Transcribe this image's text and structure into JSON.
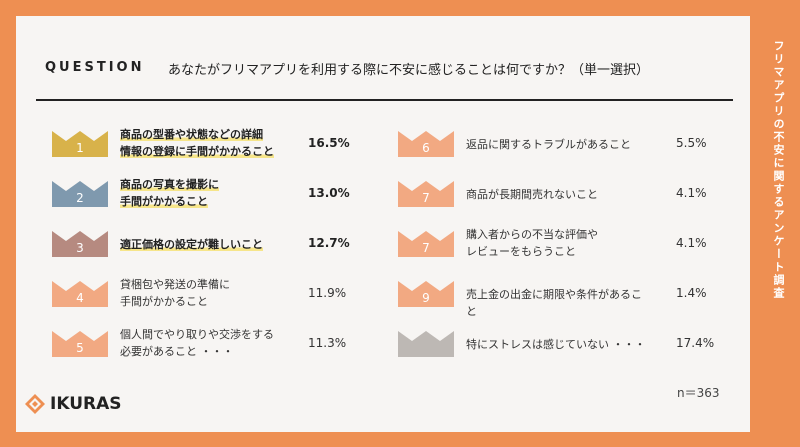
{
  "side_title": "フリマアプリの不安に関するアンケート調査",
  "question": {
    "label": "QUESTION",
    "text": "あなたがフリマアプリを利用する際に不安に感じることは何ですか？（単一選択）"
  },
  "sample_size": "n＝363",
  "logo": {
    "text": "IKURAS",
    "icon": "ikuras-diamond-icon"
  },
  "colors": {
    "rank1": "#D8B24A",
    "rank2": "#7F99AE",
    "rank3": "#B68A80",
    "rank_other": "#F2A982",
    "rank_none": "#BDB8B4",
    "highlight": "#F6E58A"
  },
  "chart_data": {
    "type": "table",
    "unit": "%",
    "items": [
      {
        "rank": "1",
        "label_lines": [
          "商品の型番や状態などの詳細",
          "情報の登録に手間がかかること"
        ],
        "value": 16.5,
        "value_label": "16.5%"
      },
      {
        "rank": "2",
        "label_lines": [
          "商品の写真を撮影に",
          "手間がかかること"
        ],
        "value": 13.0,
        "value_label": "13.0%"
      },
      {
        "rank": "3",
        "label_lines": [
          "適正価格の設定が難しいこと"
        ],
        "value": 12.7,
        "value_label": "12.7%"
      },
      {
        "rank": "4",
        "label_lines": [
          "貸梱包や発送の準備に",
          "手間がかかること"
        ],
        "value": 11.9,
        "value_label": "11.9%"
      },
      {
        "rank": "5",
        "label_lines": [
          "個人間でやり取りや交渉をする",
          "必要があること ・・・"
        ],
        "value": 11.3,
        "value_label": "11.3%"
      },
      {
        "rank": "6",
        "label_lines": [
          "返品に関するトラブルがあること"
        ],
        "value": 5.5,
        "value_label": "5.5%"
      },
      {
        "rank": "7",
        "label_lines": [
          "商品が長期間売れないこと"
        ],
        "value": 4.1,
        "value_label": "4.1%"
      },
      {
        "rank": "7",
        "label_lines": [
          "購入者からの不当な評価や",
          "レビューをもらうこと"
        ],
        "value": 4.1,
        "value_label": "4.1%"
      },
      {
        "rank": "9",
        "label_lines": [
          "売上金の出金に期限や条件があること"
        ],
        "value": 1.4,
        "value_label": "1.4%"
      },
      {
        "rank": "",
        "label_lines": [
          "特にストレスは感じていない ・・・"
        ],
        "value": 17.4,
        "value_label": "17.4%"
      }
    ]
  }
}
